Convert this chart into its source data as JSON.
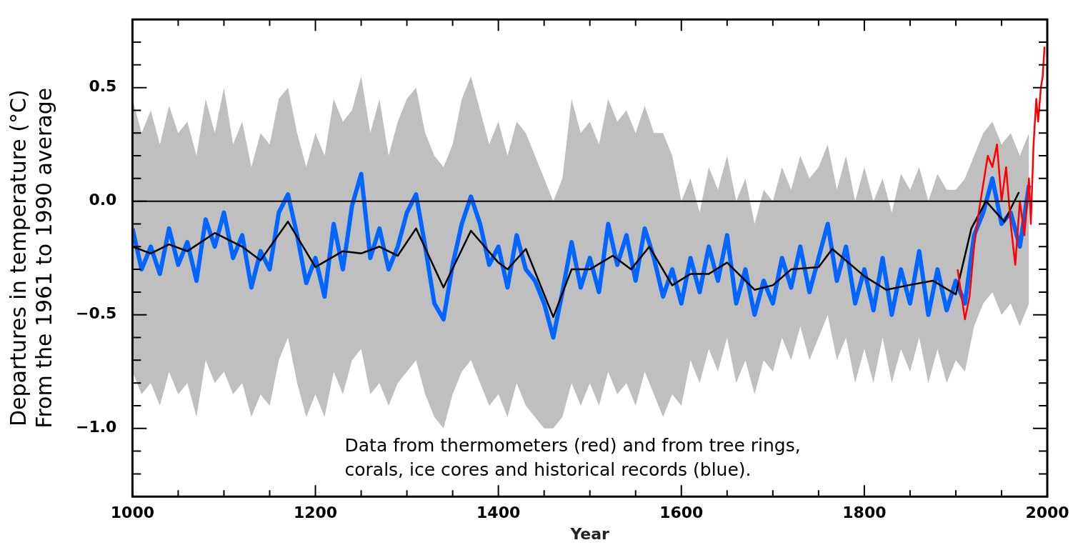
{
  "chart_data": {
    "type": "line",
    "xlabel": "Year",
    "ylabel": "Departures in temperature (°C)\nFrom the 1961 to 1990 average",
    "xlim": [
      1000,
      2000
    ],
    "xticks": [
      1000,
      {
        "value": 1050,
        "label": null
      },
      {
        "value": 1100,
        "label": null
      },
      {
        "value": 1150,
        "label": null
      },
      1200,
      {
        "value": 1250,
        "label": null
      },
      {
        "value": 1300,
        "label": null
      },
      {
        "value": 1350,
        "label": null
      },
      1400,
      {
        "value": 1450,
        "label": null
      },
      {
        "value": 1500,
        "label": null
      },
      {
        "value": 1550,
        "label": null
      },
      1600,
      {
        "value": 1650,
        "label": null
      },
      {
        "value": 1700,
        "label": null
      },
      {
        "value": 1750,
        "label": null
      },
      1800,
      {
        "value": 1850,
        "label": null
      },
      {
        "value": 1900,
        "label": null
      },
      {
        "value": 1950,
        "label": null
      },
      2000
    ],
    "ylim": [
      -1.3,
      0.8
    ],
    "yticks": [
      {
        "value": -1.2,
        "label": null
      },
      {
        "value": -1.1,
        "label": null
      },
      {
        "value": -1,
        "label": "−1.0"
      },
      {
        "value": -0.9,
        "label": null
      },
      {
        "value": -0.8,
        "label": null
      },
      {
        "value": -0.7,
        "label": null
      },
      {
        "value": -0.6,
        "label": null
      },
      {
        "value": -0.5,
        "label": "−0.5"
      },
      {
        "value": -0.4,
        "label": null
      },
      {
        "value": -0.3,
        "label": null
      },
      {
        "value": -0.2,
        "label": null
      },
      {
        "value": -0.1,
        "label": null
      },
      {
        "value": 0,
        "label": "0.0"
      },
      {
        "value": 0.1,
        "label": null
      },
      {
        "value": 0.2,
        "label": null
      },
      {
        "value": 0.3,
        "label": null
      },
      {
        "value": 0.4,
        "label": null
      },
      {
        "value": 0.5,
        "label": "0.5"
      },
      {
        "value": 0.6,
        "label": null
      },
      {
        "value": 0.7,
        "label": null
      }
    ],
    "ref_lines": [
      {
        "axis": "y",
        "value": 0,
        "color": "#000000"
      }
    ],
    "annotations": [
      "Data from thermometers (red) and from tree rings,\ncorals, ice cores and historical records (blue)."
    ],
    "series": [
      {
        "color": "#0066ff",
        "x": [
          1000,
          1010,
          1020,
          1030,
          1040,
          1050,
          1060,
          1070,
          1080,
          1090,
          1100,
          1110,
          1120,
          1130,
          1140,
          1150,
          1160,
          1170,
          1180,
          1190,
          1200,
          1210,
          1220,
          1230,
          1240,
          1250,
          1260,
          1270,
          1280,
          1290,
          1300,
          1310,
          1320,
          1330,
          1340,
          1350,
          1360,
          1370,
          1380,
          1390,
          1400,
          1410,
          1420,
          1430,
          1440,
          1450,
          1460,
          1470,
          1480,
          1490,
          1500,
          1510,
          1520,
          1530,
          1540,
          1550,
          1560,
          1570,
          1580,
          1590,
          1600,
          1610,
          1620,
          1630,
          1640,
          1650,
          1660,
          1670,
          1680,
          1690,
          1700,
          1710,
          1720,
          1730,
          1740,
          1750,
          1760,
          1770,
          1780,
          1790,
          1800,
          1810,
          1820,
          1830,
          1840,
          1850,
          1860,
          1870,
          1880,
          1890,
          1900,
          1910,
          1920,
          1930,
          1940,
          1950,
          1960,
          1970,
          1980
        ],
        "values": [
          -0.12,
          -0.3,
          -0.2,
          -0.32,
          -0.12,
          -0.28,
          -0.18,
          -0.35,
          -0.08,
          -0.2,
          -0.05,
          -0.25,
          -0.15,
          -0.38,
          -0.22,
          -0.3,
          -0.05,
          0.03,
          -0.15,
          -0.36,
          -0.25,
          -0.42,
          -0.1,
          -0.3,
          -0.02,
          0.12,
          -0.25,
          -0.12,
          -0.3,
          -0.2,
          -0.05,
          0.03,
          -0.2,
          -0.45,
          -0.52,
          -0.28,
          -0.1,
          0.02,
          -0.1,
          -0.28,
          -0.2,
          -0.38,
          -0.15,
          -0.3,
          -0.35,
          -0.45,
          -0.6,
          -0.4,
          -0.18,
          -0.38,
          -0.25,
          -0.4,
          -0.1,
          -0.28,
          -0.15,
          -0.35,
          -0.12,
          -0.25,
          -0.42,
          -0.3,
          -0.45,
          -0.25,
          -0.4,
          -0.2,
          -0.35,
          -0.15,
          -0.45,
          -0.3,
          -0.5,
          -0.35,
          -0.45,
          -0.25,
          -0.38,
          -0.2,
          -0.4,
          -0.25,
          -0.1,
          -0.35,
          -0.2,
          -0.45,
          -0.3,
          -0.48,
          -0.25,
          -0.5,
          -0.3,
          -0.45,
          -0.22,
          -0.5,
          -0.3,
          -0.48,
          -0.35,
          -0.45,
          -0.15,
          -0.05,
          0.1,
          -0.1,
          -0.05,
          -0.2,
          0.07
        ],
        "upper": [
          0.45,
          0.3,
          0.4,
          0.25,
          0.42,
          0.3,
          0.35,
          0.2,
          0.45,
          0.3,
          0.5,
          0.25,
          0.35,
          0.15,
          0.3,
          0.25,
          0.45,
          0.5,
          0.3,
          0.15,
          0.3,
          0.2,
          0.45,
          0.35,
          0.4,
          0.55,
          0.3,
          0.45,
          0.2,
          0.35,
          0.45,
          0.5,
          0.3,
          0.2,
          0.15,
          0.25,
          0.45,
          0.55,
          0.4,
          0.25,
          0.35,
          0.2,
          0.35,
          0.3,
          0.2,
          0.1,
          0.0,
          0.1,
          0.45,
          0.3,
          0.35,
          0.25,
          0.45,
          0.35,
          0.4,
          0.3,
          0.42,
          0.3,
          0.3,
          0.2,
          0.0,
          0.1,
          -0.05,
          0.15,
          0.05,
          0.2,
          0.0,
          0.1,
          -0.1,
          0.05,
          0.0,
          0.15,
          0.05,
          0.2,
          0.1,
          0.15,
          0.25,
          0.05,
          0.2,
          0.0,
          0.15,
          0.0,
          0.1,
          -0.05,
          0.12,
          0.05,
          0.15,
          0.0,
          0.12,
          0.05,
          0.05,
          0.1,
          0.2,
          0.3,
          0.35,
          0.25,
          0.3,
          0.2,
          0.3
        ],
        "lower": [
          -0.75,
          -0.85,
          -0.8,
          -0.9,
          -0.75,
          -0.85,
          -0.8,
          -0.95,
          -0.7,
          -0.8,
          -0.75,
          -0.85,
          -0.8,
          -0.95,
          -0.85,
          -0.9,
          -0.7,
          -0.6,
          -0.8,
          -0.95,
          -0.85,
          -0.95,
          -0.75,
          -0.85,
          -0.7,
          -0.65,
          -0.85,
          -0.8,
          -0.9,
          -0.8,
          -0.75,
          -0.7,
          -0.85,
          -0.95,
          -1.0,
          -0.85,
          -0.75,
          -0.7,
          -0.8,
          -0.9,
          -0.85,
          -0.95,
          -0.8,
          -0.9,
          -0.95,
          -1.0,
          -1.0,
          -0.95,
          -0.8,
          -0.9,
          -0.8,
          -0.9,
          -0.75,
          -0.85,
          -0.8,
          -0.9,
          -0.75,
          -0.85,
          -0.95,
          -0.85,
          -0.9,
          -0.7,
          -0.8,
          -0.65,
          -0.75,
          -0.6,
          -0.8,
          -0.7,
          -0.85,
          -0.7,
          -0.75,
          -0.6,
          -0.7,
          -0.55,
          -0.7,
          -0.6,
          -0.5,
          -0.7,
          -0.6,
          -0.8,
          -0.65,
          -0.8,
          -0.6,
          -0.8,
          -0.65,
          -0.75,
          -0.6,
          -0.8,
          -0.65,
          -0.8,
          -0.7,
          -0.75,
          -0.55,
          -0.45,
          -0.4,
          -0.5,
          -0.45,
          -0.55,
          -0.45
        ]
      },
      {
        "color": "#000000",
        "x": [
          1000,
          1020,
          1040,
          1060,
          1090,
          1120,
          1140,
          1170,
          1200,
          1230,
          1250,
          1270,
          1290,
          1310,
          1340,
          1370,
          1400,
          1410,
          1430,
          1460,
          1480,
          1500,
          1525,
          1545,
          1565,
          1590,
          1610,
          1630,
          1650,
          1680,
          1700,
          1720,
          1750,
          1765,
          1800,
          1824,
          1848,
          1875,
          1900,
          1917,
          1933,
          1953,
          1969
        ],
        "values": [
          -0.2,
          -0.23,
          -0.19,
          -0.22,
          -0.14,
          -0.2,
          -0.26,
          -0.09,
          -0.29,
          -0.22,
          -0.23,
          -0.2,
          -0.24,
          -0.12,
          -0.38,
          -0.13,
          -0.27,
          -0.3,
          -0.21,
          -0.51,
          -0.3,
          -0.3,
          -0.24,
          -0.3,
          -0.2,
          -0.37,
          -0.32,
          -0.32,
          -0.27,
          -0.39,
          -0.37,
          -0.3,
          -0.29,
          -0.21,
          -0.33,
          -0.39,
          -0.37,
          -0.35,
          -0.41,
          -0.12,
          0.0,
          -0.09,
          0.04
        ]
      },
      {
        "color": "#ff0000",
        "x": [
          1902,
          1910,
          1915,
          1920,
          1925,
          1935,
          1940,
          1945,
          1950,
          1955,
          1960,
          1965,
          1970,
          1975,
          1980,
          1982,
          1985,
          1988,
          1990,
          1993,
          1995,
          1997
        ],
        "values": [
          -0.3,
          -0.52,
          -0.42,
          -0.2,
          -0.05,
          0.2,
          0.15,
          0.25,
          0.0,
          0.15,
          -0.1,
          -0.28,
          0.0,
          -0.15,
          0.1,
          -0.1,
          0.25,
          0.45,
          0.35,
          0.5,
          0.55,
          0.68
        ]
      }
    ]
  }
}
